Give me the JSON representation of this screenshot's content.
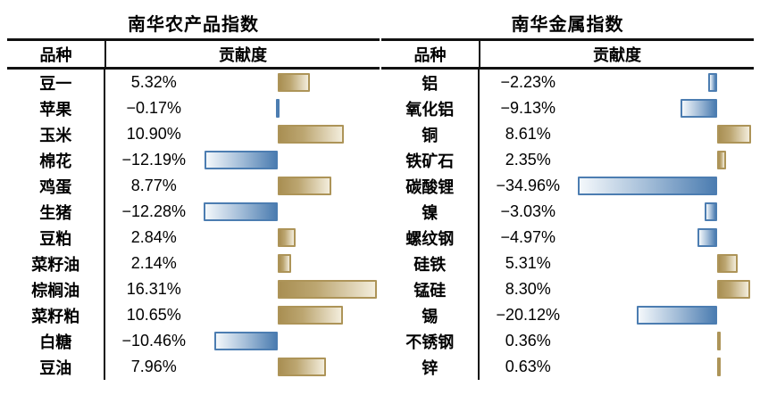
{
  "tables": [
    {
      "title": "南华农产品指数",
      "col_variety": "品种",
      "col_contribution": "贡献度",
      "rows": [
        {
          "name": "豆一",
          "value_label": "5.32%",
          "value": 5.32
        },
        {
          "name": "苹果",
          "value_label": "−0.17%",
          "value": -0.17
        },
        {
          "name": "玉米",
          "value_label": "10.90%",
          "value": 10.9
        },
        {
          "name": "棉花",
          "value_label": "−12.19%",
          "value": -12.19
        },
        {
          "name": "鸡蛋",
          "value_label": "8.77%",
          "value": 8.77
        },
        {
          "name": "生猪",
          "value_label": "−12.28%",
          "value": -12.28
        },
        {
          "name": "豆粕",
          "value_label": "2.84%",
          "value": 2.84
        },
        {
          "name": "菜籽油",
          "value_label": "2.14%",
          "value": 2.14
        },
        {
          "name": "棕榈油",
          "value_label": "16.31%",
          "value": 16.31
        },
        {
          "name": "菜籽粕",
          "value_label": "10.65%",
          "value": 10.65
        },
        {
          "name": "白糖",
          "value_label": "−10.46%",
          "value": -10.46
        },
        {
          "name": "豆油",
          "value_label": "7.96%",
          "value": 7.96
        }
      ]
    },
    {
      "title": "南华金属指数",
      "col_variety": "品种",
      "col_contribution": "贡献度",
      "rows": [
        {
          "name": "铝",
          "value_label": "−2.23%",
          "value": -2.23
        },
        {
          "name": "氧化铝",
          "value_label": "−9.13%",
          "value": -9.13
        },
        {
          "name": "铜",
          "value_label": "8.61%",
          "value": 8.61
        },
        {
          "name": "铁矿石",
          "value_label": "2.35%",
          "value": 2.35
        },
        {
          "name": "碳酸锂",
          "value_label": "−34.96%",
          "value": -34.96
        },
        {
          "name": "镍",
          "value_label": "−3.03%",
          "value": -3.03
        },
        {
          "name": "螺纹钢",
          "value_label": "−4.97%",
          "value": -4.97
        },
        {
          "name": "硅铁",
          "value_label": "5.31%",
          "value": 5.31
        },
        {
          "name": "锰硅",
          "value_label": "8.30%",
          "value": 8.3
        },
        {
          "name": "锡",
          "value_label": "−20.12%",
          "value": -20.12
        },
        {
          "name": "不锈钢",
          "value_label": "0.36%",
          "value": 0.36
        },
        {
          "name": "锌",
          "value_label": "0.63%",
          "value": 0.63
        }
      ]
    }
  ],
  "colors": {
    "positive_bar_dark": "#A98F53",
    "positive_bar_light": "#F3EDDC",
    "positive_bar_border": "#AD9458",
    "negative_bar_dark": "#4C7DB1",
    "negative_bar_light": "#F4F8FB",
    "negative_bar_border": "#4C7DB1",
    "rule_line": "#111111"
  },
  "chart_data": [
    {
      "type": "bar",
      "orientation": "horizontal",
      "title": "南华农产品指数",
      "xlabel": "贡献度",
      "ylabel": "品种",
      "categories": [
        "豆一",
        "苹果",
        "玉米",
        "棉花",
        "鸡蛋",
        "生猪",
        "豆粕",
        "菜籽油",
        "棕榈油",
        "菜籽粕",
        "白糖",
        "豆油"
      ],
      "values": [
        5.32,
        -0.17,
        10.9,
        -12.19,
        8.77,
        -12.28,
        2.84,
        2.14,
        16.31,
        10.65,
        -10.46,
        7.96
      ],
      "xlim": [
        -12.28,
        16.31
      ],
      "grid": false,
      "legend": false,
      "positive_color": "#A98F53",
      "negative_color": "#4C7DB1"
    },
    {
      "type": "bar",
      "orientation": "horizontal",
      "title": "南华金属指数",
      "xlabel": "贡献度",
      "ylabel": "品种",
      "categories": [
        "铝",
        "氧化铝",
        "铜",
        "铁矿石",
        "碳酸锂",
        "镍",
        "螺纹钢",
        "硅铁",
        "锰硅",
        "锡",
        "不锈钢",
        "锌"
      ],
      "values": [
        -2.23,
        -9.13,
        8.61,
        2.35,
        -34.96,
        -3.03,
        -4.97,
        5.31,
        8.3,
        -20.12,
        0.36,
        0.63
      ],
      "xlim": [
        -34.96,
        8.61
      ],
      "grid": false,
      "legend": false,
      "positive_color": "#A98F53",
      "negative_color": "#4C7DB1"
    }
  ]
}
